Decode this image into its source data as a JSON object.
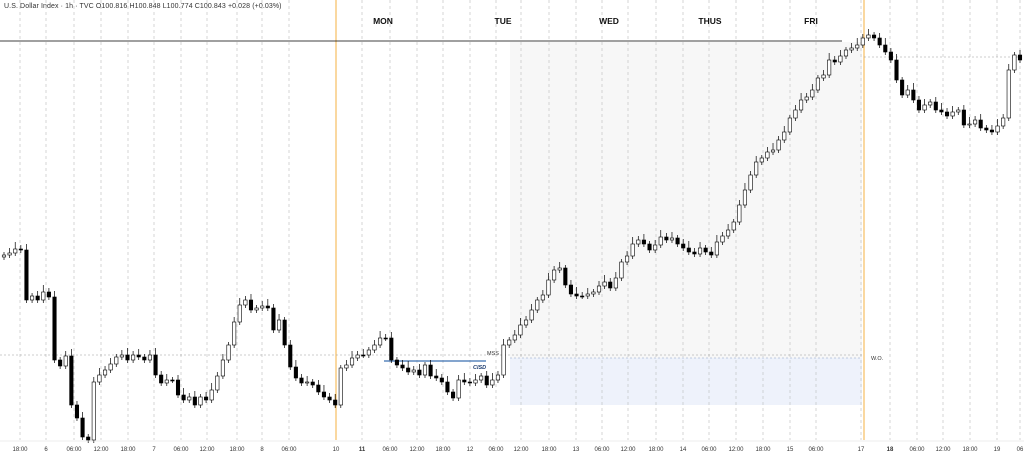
{
  "header": {
    "symbol_line": "U.S. Dollar Index · 1h · TVC",
    "open": "O100.816",
    "high": "H100.848",
    "low": "L100.774",
    "close": "C100.843",
    "change": "+0.028 (+0.03%)"
  },
  "day_labels": [
    "MON",
    "TUE",
    "WED",
    "THUS",
    "FRI"
  ],
  "annotations": {
    "mss": "MSS",
    "cisd": "CISD",
    "wo": "W.O."
  },
  "x_axis_ticks": [
    "18:00",
    "6",
    "06:00",
    "12:00",
    "18:00",
    "7",
    "06:00",
    "12:00",
    "18:00",
    "8",
    "06:00",
    "10",
    "11",
    "06:00",
    "12:00",
    "18:00",
    "12",
    "06:00",
    "12:00",
    "18:00",
    "13",
    "06:00",
    "12:00",
    "18:00",
    "14",
    "06:00",
    "12:00",
    "18:00",
    "15",
    "06:00",
    "17",
    "18",
    "06:00",
    "12:00",
    "18:00",
    "19",
    "06"
  ],
  "colors": {
    "bull": "#ffffff",
    "bear": "#000000",
    "outline": "#000000",
    "week_open_line": "#f5b041",
    "premium_zone": "#f7f7f7",
    "discount_zone": "#eef2fb",
    "grid": "#bbbbbb",
    "resistance_line": "#000000",
    "mss_line": "#3a6fb0"
  },
  "chart_data": {
    "type": "candlestick",
    "instrument": "U.S. Dollar Index",
    "timeframe": "1h",
    "ohlc": [
      [
        "O100.816",
        "H100.848",
        "L100.774",
        "C100.843"
      ]
    ],
    "change": "+0.028 (+0.03%)",
    "x_labels": [
      "18:00",
      "6",
      "06:00",
      "12:00",
      "18:00",
      "7",
      "06:00",
      "12:00",
      "18:00",
      "8",
      "06:00",
      "10",
      "11",
      "06:00",
      "12:00",
      "18:00",
      "12",
      "06:00",
      "12:00",
      "18:00",
      "13",
      "06:00",
      "12:00",
      "18:00",
      "14",
      "06:00",
      "12:00",
      "18:00",
      "15",
      "06:00",
      "17",
      "18",
      "06:00",
      "12:00",
      "18:00",
      "19",
      "06"
    ],
    "closes": [
      255,
      253,
      249,
      250,
      300,
      296,
      300,
      292,
      297,
      360,
      366,
      356,
      405,
      418,
      437,
      440,
      382,
      375,
      370,
      364,
      357,
      355,
      360,
      355,
      357,
      360,
      355,
      375,
      383,
      380,
      380,
      395,
      400,
      397,
      405,
      397,
      400,
      390,
      376,
      360,
      345,
      322,
      305,
      300,
      310,
      308,
      306,
      308,
      330,
      320,
      345,
      367,
      378,
      383,
      382,
      385,
      392,
      397,
      400,
      405,
      368,
      365,
      358,
      355,
      355,
      350,
      345,
      338,
      338,
      360,
      365,
      368,
      372,
      370,
      375,
      365,
      376,
      378,
      382,
      392,
      398,
      380,
      382,
      383,
      380,
      376,
      385,
      380,
      375,
      345,
      340,
      335,
      325,
      320,
      310,
      300,
      295,
      280,
      270,
      268,
      285,
      294,
      296,
      296,
      294,
      292,
      286,
      282,
      288,
      278,
      262,
      256,
      244,
      240,
      244,
      250,
      245,
      237,
      240,
      238,
      244,
      248,
      252,
      254,
      248,
      252,
      255,
      242,
      236,
      230,
      222,
      205,
      190,
      175,
      162,
      158,
      152,
      150,
      140,
      132,
      118,
      110,
      100,
      97,
      90,
      78,
      75,
      60,
      62,
      56,
      50,
      48,
      45,
      38,
      35,
      38,
      45,
      52,
      60,
      80,
      95,
      90,
      100,
      110,
      105,
      102,
      110,
      112,
      116,
      112,
      110,
      125,
      124,
      120,
      128,
      130,
      132,
      126,
      118,
      70,
      55,
      60
    ],
    "week_open_value": "W.O.",
    "market_structure_shift": "MSS",
    "change_in_state_of_delivery": "CISD"
  }
}
